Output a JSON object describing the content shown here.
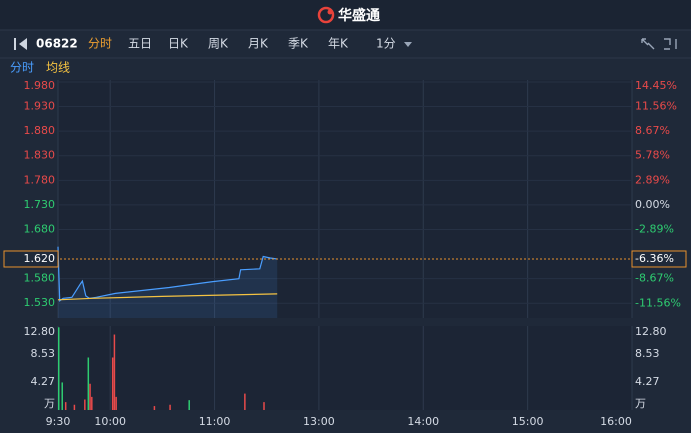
{
  "header": {
    "logo": "华盛通"
  },
  "toolbar": {
    "code": "06822",
    "tabs": [
      "分时",
      "五日",
      "日K",
      "周K",
      "月K",
      "季K",
      "年K"
    ],
    "active_tab": 0,
    "interval": "1分"
  },
  "chart_data": [
    {
      "type": "line",
      "legend": [
        "分时",
        "均线"
      ],
      "xlim": [
        0,
        330
      ],
      "xticks": [
        0,
        30,
        90,
        150,
        210,
        270,
        330
      ],
      "ylim": [
        1.5,
        1.984
      ],
      "yticks": [
        {
          "value": 1.98,
          "label": "1.980"
        },
        {
          "value": 1.93,
          "label": "1.930"
        },
        {
          "value": 1.88,
          "label": "1.880"
        },
        {
          "value": 1.83,
          "label": "1.830"
        },
        {
          "value": 1.78,
          "label": "1.780"
        },
        {
          "value": 1.73,
          "label": "1.730"
        },
        {
          "value": 1.68,
          "label": "1.680"
        },
        {
          "value": 1.58,
          "label": "1.580"
        },
        {
          "value": 1.53,
          "label": "1.530"
        }
      ],
      "y2lim": [
        -13.29,
        14.68
      ],
      "y2ticks": [
        {
          "value": 14.45,
          "label": "14.45%"
        },
        {
          "value": 11.56,
          "label": "11.56%"
        },
        {
          "value": 8.67,
          "label": "8.67%"
        },
        {
          "value": 5.78,
          "label": "5.78%"
        },
        {
          "value": 2.89,
          "label": "2.89%"
        },
        {
          "value": 0,
          "label": "0.00%"
        },
        {
          "value": -2.89,
          "label": "-2.89%"
        },
        {
          "value": -8.67,
          "label": "-8.67%"
        },
        {
          "value": -11.56,
          "label": "-11.56%"
        }
      ],
      "last_price": {
        "value": 1.62,
        "label": "1.620"
      },
      "last_change": {
        "value": -6.36,
        "label": "-6.36%"
      },
      "up_color": "#e84a4a",
      "down_color": "#2ecc71",
      "series": [
        {
          "name": "分时",
          "color": "#4a9eff",
          "x": [
            0,
            1,
            3,
            8,
            13,
            14,
            16,
            18,
            22,
            33,
            64,
            76,
            89,
            104,
            105,
            116,
            118,
            122,
            126
          ],
          "values": [
            1.645,
            1.535,
            1.54,
            1.542,
            1.57,
            1.575,
            1.545,
            1.54,
            1.542,
            1.55,
            1.562,
            1.568,
            1.574,
            1.58,
            1.598,
            1.6,
            1.625,
            1.622,
            1.62
          ]
        },
        {
          "name": "均线",
          "color": "#f5c342",
          "x": [
            0,
            20,
            60,
            100,
            126
          ],
          "values": [
            1.537,
            1.54,
            1.544,
            1.547,
            1.549
          ]
        }
      ]
    },
    {
      "type": "bar",
      "xlim": [
        0,
        330
      ],
      "xticks": [
        {
          "value": 0,
          "label": "9:30"
        },
        {
          "value": 30,
          "label": "10:00"
        },
        {
          "value": 90,
          "label": "11:00"
        },
        {
          "value": 150,
          "label": "13:00"
        },
        {
          "value": 210,
          "label": "14:00"
        },
        {
          "value": 270,
          "label": "15:00"
        },
        {
          "value": 330,
          "label": "16:00"
        }
      ],
      "ylim": [
        0,
        12.8
      ],
      "yticks": [
        {
          "value": 12.8,
          "label": "12.80"
        },
        8.53,
        4.27,
        {
          "value": 0,
          "label": "万"
        }
      ],
      "x": [
        0,
        2,
        4,
        9,
        15,
        17,
        18,
        19,
        31,
        32,
        33,
        55,
        64,
        75,
        107,
        118
      ],
      "values": [
        12.6,
        4.2,
        1.2,
        0.8,
        1.6,
        8.0,
        4.0,
        2.0,
        8.0,
        11.5,
        2.0,
        0.6,
        0.8,
        1.5,
        2.5,
        1.2
      ],
      "colors": [
        "#2ecc71",
        "#2ecc71",
        "#e84a4a",
        "#e84a4a",
        "#e84a4a",
        "#2ecc71",
        "#e84a4a",
        "#e84a4a",
        "#e84a4a",
        "#e84a4a",
        "#e84a4a",
        "#e84a4a",
        "#e84a4a",
        "#2ecc71",
        "#e84a4a",
        "#e84a4a"
      ]
    }
  ]
}
